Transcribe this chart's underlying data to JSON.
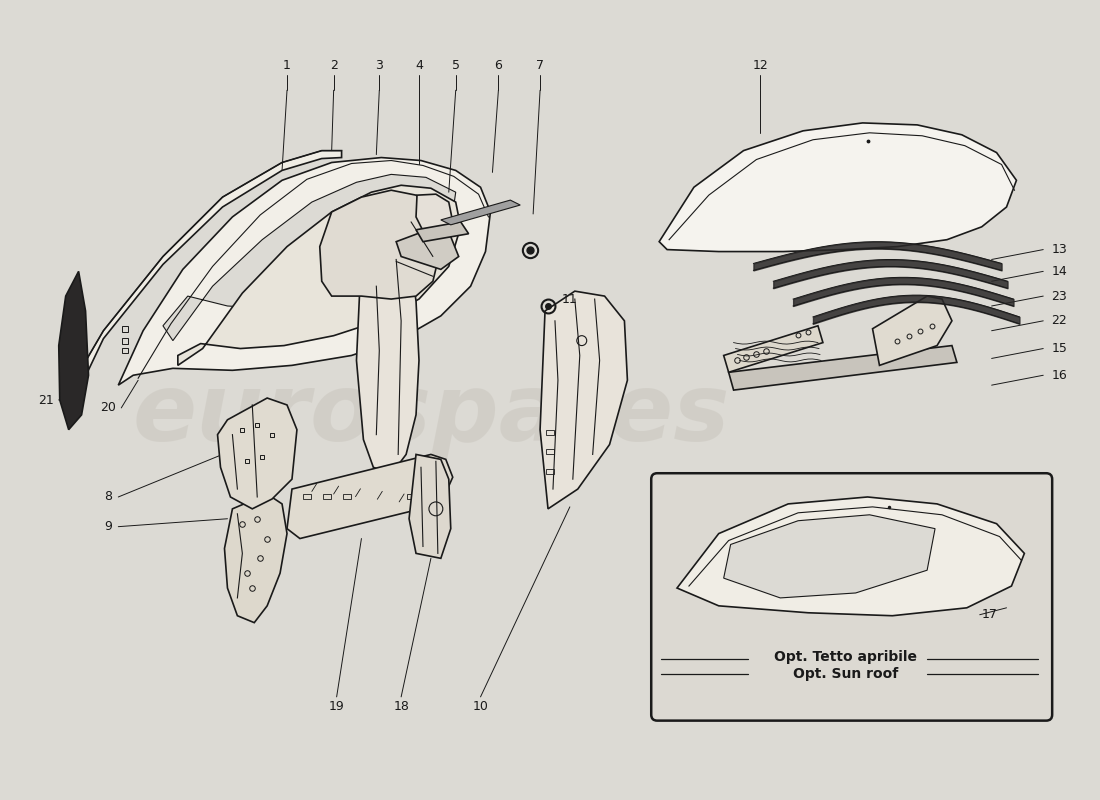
{
  "background_color": "#dcdad4",
  "line_color": "#1a1a1a",
  "watermark_text": "eurospares",
  "watermark_color": "#c8c4bc",
  "sunroof_label1": "Opt. Tetto apribile",
  "sunroof_label2": "Opt. Sun roof"
}
